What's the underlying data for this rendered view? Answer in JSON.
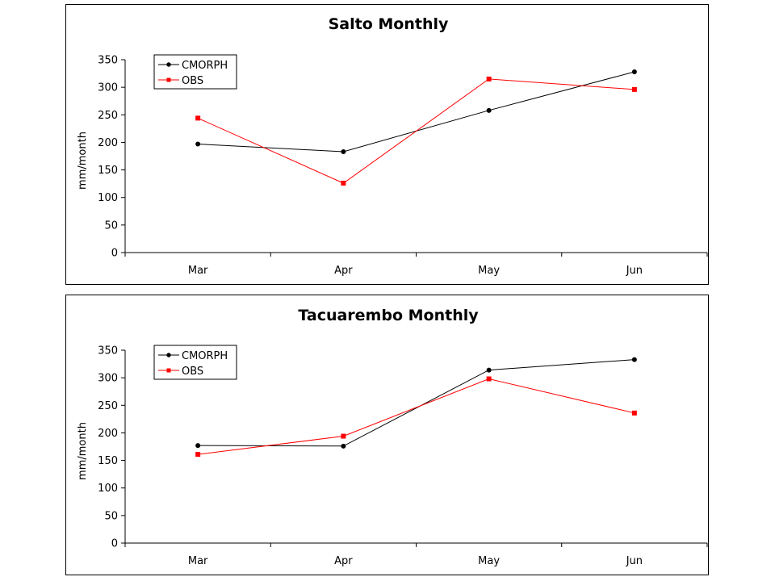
{
  "chart_data": [
    {
      "type": "line",
      "title": "Salto Monthly",
      "xlabel": "",
      "ylabel": "mm/month",
      "ylim": [
        0,
        350
      ],
      "yticks": [
        0,
        50,
        100,
        150,
        200,
        250,
        300,
        350
      ],
      "categories": [
        "Mar",
        "Apr",
        "May",
        "Jun"
      ],
      "grid": false,
      "legend_position": "top-left",
      "series": [
        {
          "name": "CMORPH",
          "color": "#000000",
          "marker": "circle",
          "values": [
            197,
            183,
            258,
            328
          ]
        },
        {
          "name": "OBS",
          "color": "#ff0000",
          "marker": "square",
          "values": [
            244,
            126,
            315,
            296
          ]
        }
      ]
    },
    {
      "type": "line",
      "title": "Tacuarembo Monthly",
      "xlabel": "",
      "ylabel": "mm/month",
      "ylim": [
        0,
        350
      ],
      "yticks": [
        0,
        50,
        100,
        150,
        200,
        250,
        300,
        350
      ],
      "categories": [
        "Mar",
        "Apr",
        "May",
        "Jun"
      ],
      "grid": false,
      "legend_position": "top-left",
      "series": [
        {
          "name": "CMORPH",
          "color": "#000000",
          "marker": "circle",
          "values": [
            177,
            176,
            314,
            333
          ]
        },
        {
          "name": "OBS",
          "color": "#ff0000",
          "marker": "square",
          "values": [
            161,
            194,
            298,
            236
          ]
        }
      ]
    }
  ]
}
